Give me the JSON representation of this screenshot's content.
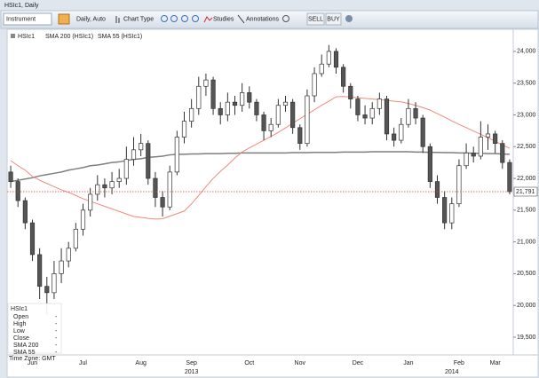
{
  "window_title": "HSIc1, Daily",
  "toolbar": {
    "instrument": "Instrument",
    "interval": "Daily, Auto",
    "chart_type": "Chart Type",
    "studies": "Studies",
    "annotations": "Annotations",
    "sell": "SELL",
    "buy": "BUY"
  },
  "info_box": {
    "title": "HSIc1",
    "rows": [
      {
        "label": "Open",
        "value": "-"
      },
      {
        "label": "High",
        "value": "-"
      },
      {
        "label": "Low",
        "value": "-"
      },
      {
        "label": "Close",
        "value": "-"
      },
      {
        "label": "SMA 200",
        "value": "-"
      },
      {
        "label": "SMA 55",
        "value": "-"
      }
    ]
  },
  "time_zone": "Time Zone: GMT",
  "chart_data": {
    "type": "candlestick",
    "name": "HSIc1",
    "up_color": "#ffffff",
    "down_color": "#555555",
    "outline_color": "#333333",
    "categories": [
      null,
      null,
      null,
      "Jun",
      null,
      null,
      null,
      null,
      null,
      null,
      "Jul",
      null,
      null,
      null,
      null,
      null,
      null,
      null,
      "Aug",
      null,
      null,
      null,
      null,
      null,
      null,
      "Sep",
      null,
      null,
      null,
      null,
      null,
      null,
      null,
      "Oct",
      null,
      null,
      null,
      null,
      null,
      null,
      "Nov",
      null,
      null,
      null,
      null,
      null,
      null,
      null,
      "Dec",
      null,
      null,
      null,
      null,
      null,
      null,
      "Jan",
      null,
      null,
      null,
      null,
      null,
      null,
      "Feb",
      null,
      null,
      null,
      null,
      "Mar",
      null,
      null
    ],
    "years": [
      null,
      null,
      null,
      null,
      null,
      null,
      null,
      null,
      null,
      null,
      null,
      null,
      null,
      null,
      null,
      null,
      null,
      null,
      null,
      null,
      null,
      null,
      null,
      null,
      null,
      "2013",
      null,
      null,
      null,
      null,
      null,
      null,
      null,
      null,
      null,
      null,
      null,
      null,
      null,
      null,
      null,
      null,
      null,
      null,
      null,
      null,
      null,
      null,
      null,
      null,
      null,
      null,
      null,
      null,
      null,
      null,
      null,
      null,
      null,
      null,
      null,
      "2014",
      null,
      null,
      null,
      null,
      null,
      null,
      null,
      null
    ],
    "open": [
      22100,
      21950,
      21650,
      21300,
      20800,
      20300,
      20200,
      20500,
      20700,
      20900,
      21200,
      21500,
      21750,
      21900,
      21850,
      21950,
      22000,
      22300,
      22450,
      22550,
      22000,
      21700,
      21550,
      22100,
      22650,
      22900,
      23100,
      23450,
      23550,
      23100,
      23000,
      23200,
      23150,
      23350,
      23200,
      23000,
      22750,
      22850,
      23150,
      23200,
      22800,
      22550,
      23300,
      23650,
      23800,
      24000,
      23750,
      23450,
      23250,
      23000,
      22950,
      23100,
      23250,
      22700,
      22600,
      22850,
      23100,
      22950,
      22500,
      21950,
      21700,
      21300,
      21600,
      22200,
      22400,
      22350,
      22650,
      22700,
      22550,
      22250
    ],
    "high": [
      22200,
      22000,
      21700,
      21350,
      20900,
      20450,
      20700,
      20900,
      21000,
      21300,
      21600,
      21850,
      22050,
      22000,
      22100,
      22150,
      22500,
      22650,
      22700,
      22600,
      22100,
      21800,
      22200,
      22750,
      23050,
      23250,
      23600,
      23650,
      23600,
      23200,
      23350,
      23300,
      23500,
      23450,
      23250,
      23050,
      22950,
      23250,
      23300,
      23250,
      22850,
      23400,
      23750,
      23950,
      24100,
      24050,
      23800,
      23500,
      23300,
      23150,
      23200,
      23350,
      23300,
      22800,
      22950,
      23250,
      23200,
      23000,
      22550,
      22050,
      21800,
      21700,
      22300,
      22550,
      22500,
      22900,
      22850,
      22750,
      22600,
      22300
    ],
    "low": [
      21850,
      21550,
      21200,
      20700,
      20100,
      19850,
      20100,
      20350,
      20600,
      20850,
      21100,
      21400,
      21650,
      21700,
      21750,
      21850,
      21900,
      22200,
      22350,
      21900,
      21550,
      21400,
      21500,
      22050,
      22550,
      22800,
      23000,
      23300,
      23000,
      22850,
      22900,
      23000,
      23050,
      23100,
      22900,
      22600,
      22650,
      22800,
      23050,
      22700,
      22450,
      22500,
      23200,
      23600,
      23750,
      23650,
      23350,
      23100,
      22900,
      22850,
      22850,
      23000,
      22600,
      22500,
      22550,
      22800,
      22850,
      22400,
      21850,
      21600,
      21200,
      21200,
      21550,
      22150,
      22250,
      22300,
      22450,
      22400,
      22150,
      21750
    ],
    "close": [
      21950,
      21650,
      21300,
      20800,
      20300,
      20200,
      20500,
      20700,
      20900,
      21200,
      21500,
      21750,
      21900,
      21850,
      21950,
      22000,
      22300,
      22450,
      22550,
      22000,
      21700,
      21550,
      22100,
      22650,
      22900,
      23100,
      23450,
      23550,
      23100,
      23000,
      23200,
      23150,
      23350,
      23200,
      23000,
      22750,
      22850,
      23150,
      23200,
      22800,
      22550,
      23300,
      23650,
      23800,
      24000,
      23750,
      23450,
      23250,
      23000,
      22950,
      23100,
      23250,
      22700,
      22600,
      22850,
      23100,
      22950,
      22500,
      21950,
      21700,
      21300,
      21600,
      22200,
      22400,
      22350,
      22650,
      22700,
      22550,
      22250,
      21791
    ],
    "overlays": [
      {
        "name": "SMA 200 (HSIc1)",
        "color": "#7f7f7f",
        "values": [
          21950,
          21970,
          21990,
          22010,
          22040,
          22060,
          22080,
          22100,
          22130,
          22150,
          22170,
          22200,
          22210,
          22230,
          22250,
          22260,
          22280,
          22300,
          22310,
          22330,
          22340,
          22350,
          22370,
          22380,
          22380,
          22385,
          22385,
          22390,
          22390,
          22390,
          22395,
          22395,
          22400,
          22400,
          22400,
          22400,
          22400,
          22400,
          22400,
          22405,
          22405,
          22405,
          22410,
          22410,
          22410,
          22410,
          22415,
          22415,
          22415,
          22415,
          22420,
          22420,
          22420,
          22420,
          22420,
          22420,
          22415,
          22415,
          22410,
          22410,
          22405,
          22405,
          22400,
          22400,
          22395,
          22395,
          22390,
          22390,
          22385,
          22380
        ]
      },
      {
        "name": "SMA 55 (HSIc1)",
        "color": "#f08a7a",
        "values": [
          22280,
          22200,
          22130,
          22030,
          21970,
          21920,
          21870,
          21820,
          21780,
          21730,
          21680,
          21640,
          21600,
          21560,
          21520,
          21480,
          21440,
          21400,
          21385,
          21370,
          21360,
          21365,
          21405,
          21445,
          21485,
          21600,
          21730,
          21870,
          22000,
          22110,
          22210,
          22320,
          22415,
          22480,
          22540,
          22600,
          22660,
          22725,
          22795,
          22870,
          22940,
          23010,
          23080,
          23150,
          23215,
          23285,
          23290,
          23280,
          23270,
          23260,
          23250,
          23240,
          23230,
          23215,
          23205,
          23180,
          23150,
          23115,
          23075,
          23020,
          22965,
          22905,
          22850,
          22800,
          22745,
          22695,
          22640,
          22585,
          22525,
          22475
        ]
      }
    ],
    "last_price": {
      "value": 21791,
      "label": "21,791"
    },
    "last_price_color": "#e0403a",
    "ylim": [
      19220,
      24320
    ],
    "yticks": [
      {
        "value": 19500,
        "label": "19,500"
      },
      {
        "value": 20000,
        "label": "20,000"
      },
      {
        "value": 20500,
        "label": "20,500"
      },
      {
        "value": 21000,
        "label": "21,000"
      },
      {
        "value": 21500,
        "label": "21,500"
      },
      {
        "value": 22000,
        "label": "22,000"
      },
      {
        "value": 22500,
        "label": "22,500"
      },
      {
        "value": 23000,
        "label": "23,000"
      },
      {
        "value": 23500,
        "label": "23,500"
      },
      {
        "value": 24000,
        "label": "24,000"
      }
    ],
    "grid": false
  }
}
